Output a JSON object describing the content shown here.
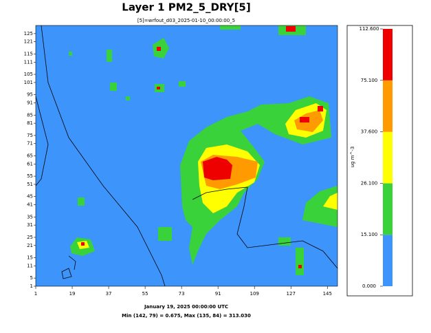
{
  "map": {
    "title": "Layer 1 PM2_5_DRY[5]",
    "subtitle": "[5]=wrfout_d03_2025-01-10_00:00:00_5",
    "xlim": [
      1,
      150
    ],
    "ylim": [
      1,
      129
    ],
    "xticks": [
      1,
      19,
      37,
      55,
      73,
      91,
      109,
      127,
      145
    ],
    "yticks": [
      1,
      5,
      11,
      15,
      21,
      25,
      31,
      35,
      41,
      45,
      51,
      55,
      61,
      65,
      71,
      75,
      81,
      85,
      91,
      95,
      101,
      105,
      111,
      115,
      121,
      125
    ],
    "date": "January 19, 2025 00:00:00 UTC",
    "minmax": "Min (142, 79) = 0.675, Max (135, 84) = 313.030"
  },
  "colorbar": {
    "unit": "ug m^-3",
    "ticks": [
      {
        "value": 0,
        "label": "0.000"
      },
      {
        "value": 15.1,
        "label": "15.100"
      },
      {
        "value": 26.1,
        "label": "26.100"
      },
      {
        "value": 37.6,
        "label": "37.600"
      },
      {
        "value": 75.1,
        "label": "75.100"
      },
      {
        "value": 112.6,
        "label": "112.600"
      }
    ],
    "colors": [
      "#3d94fb",
      "#3ad23a",
      "#ffff00",
      "#ff9a00",
      "#ee0000"
    ]
  }
}
